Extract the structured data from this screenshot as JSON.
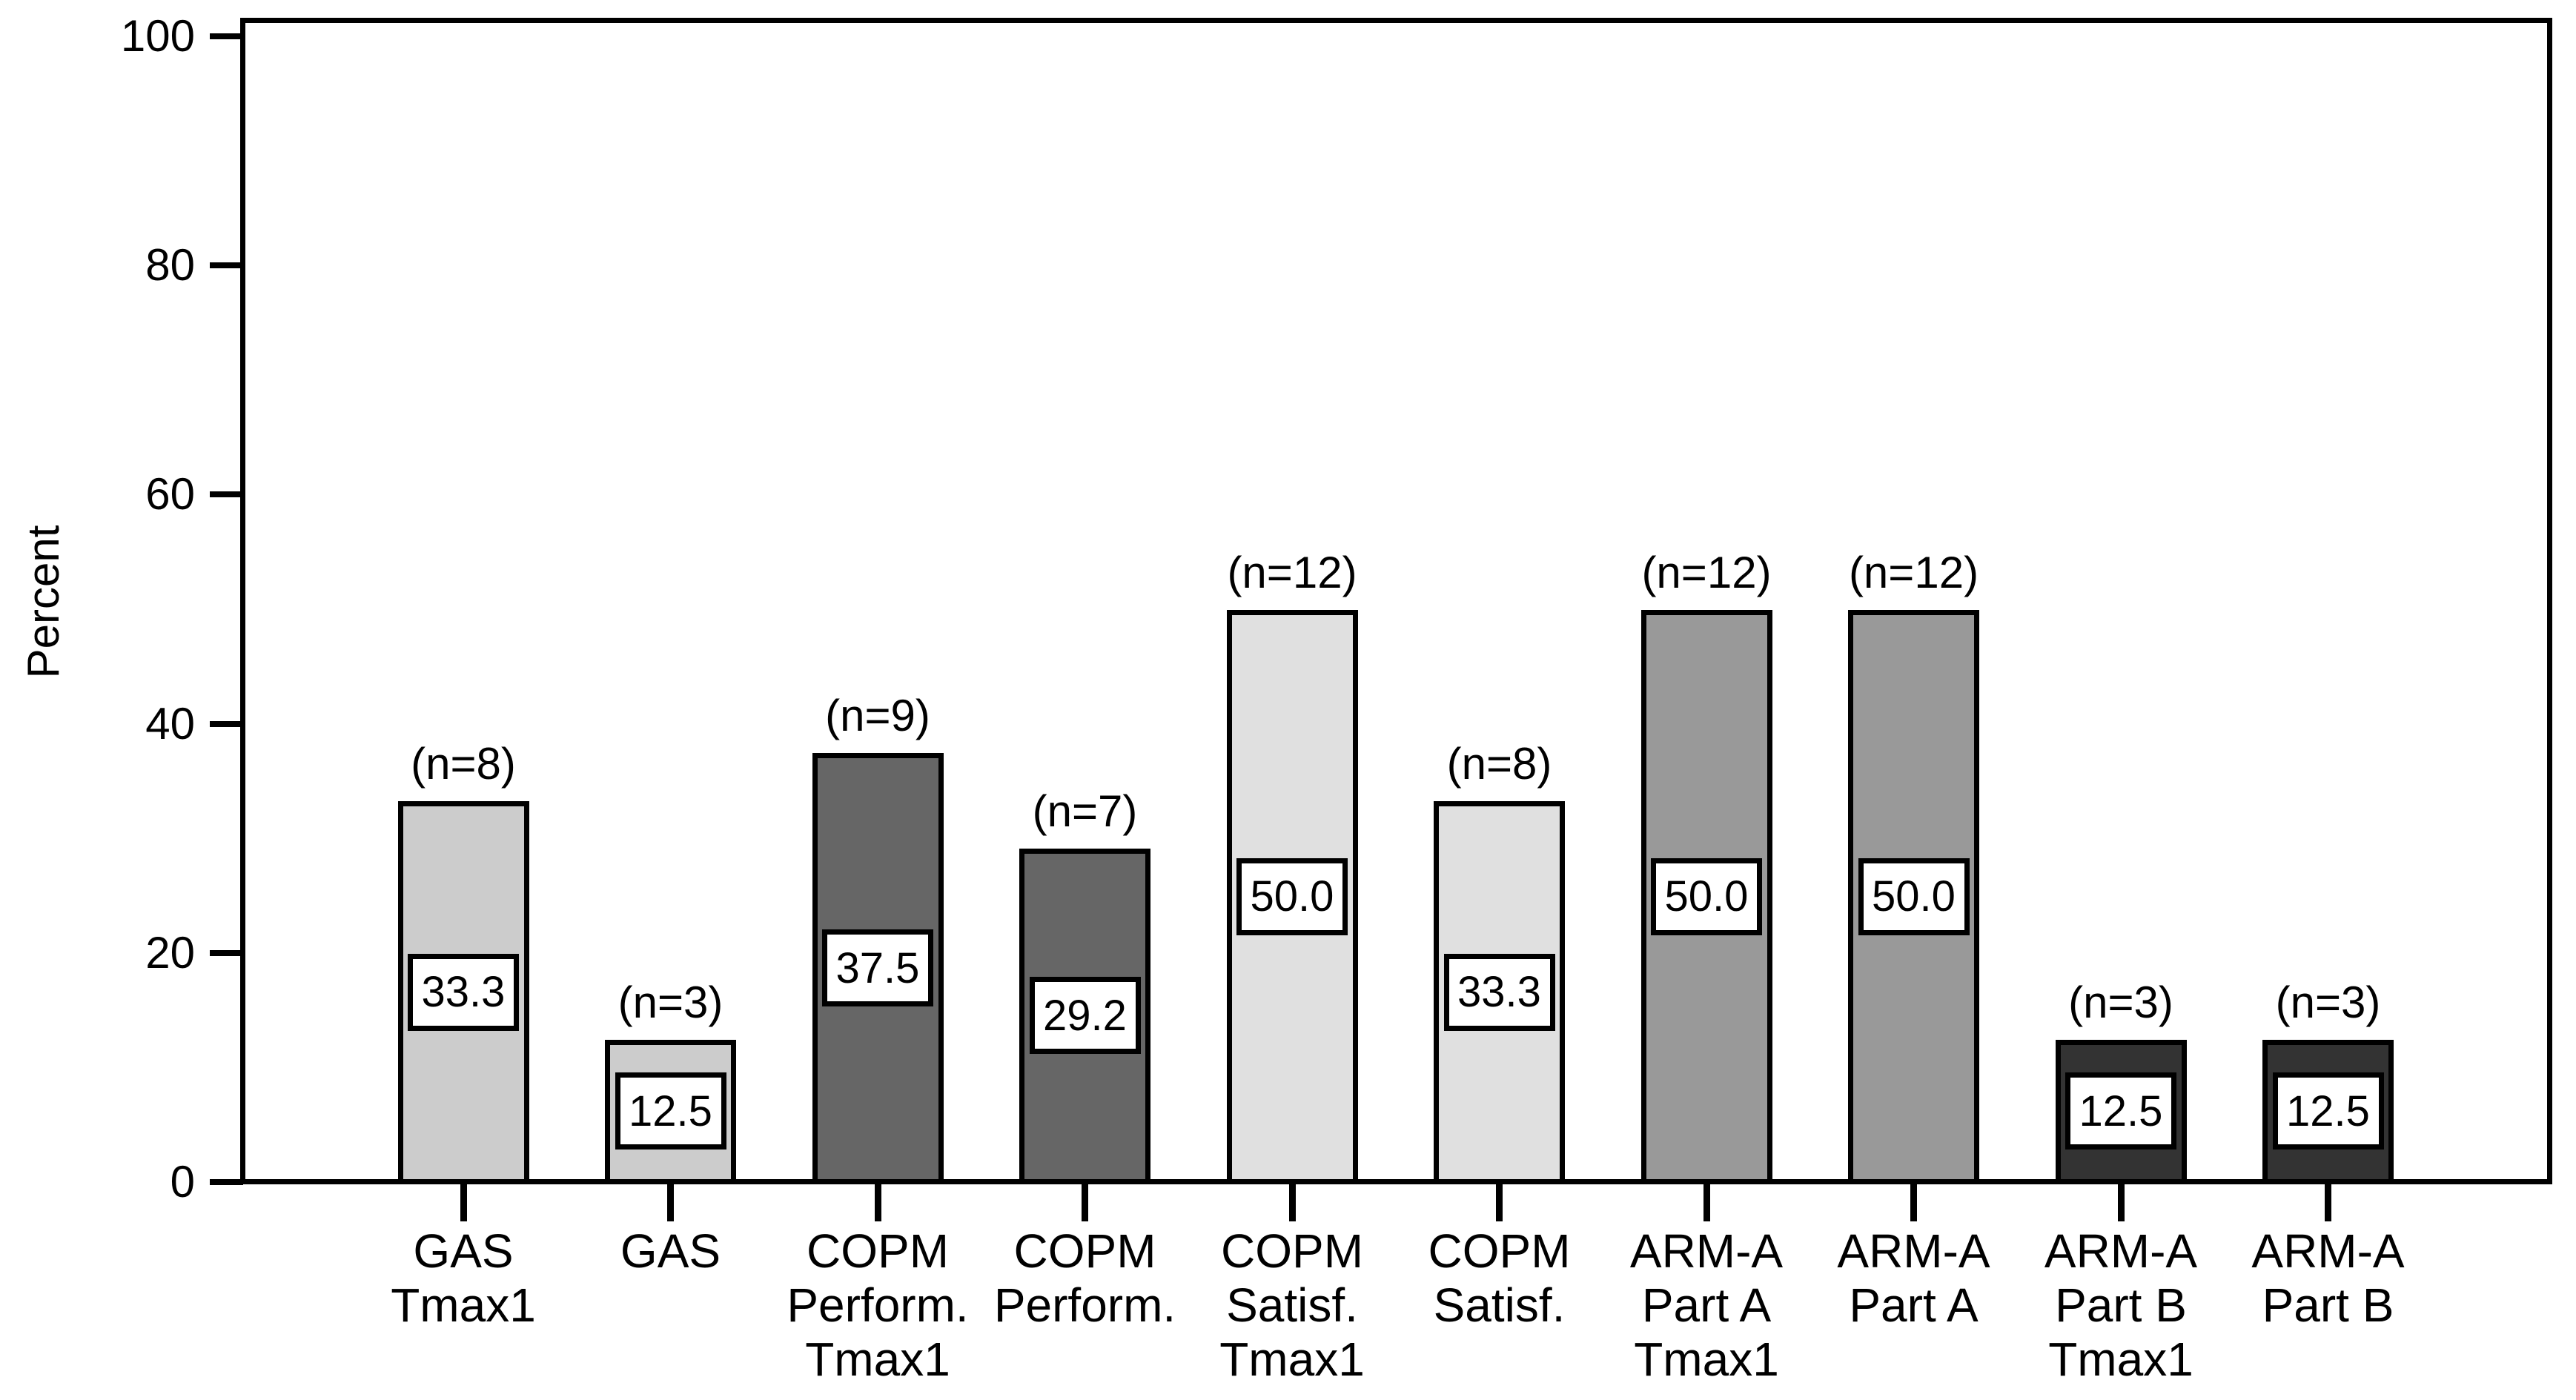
{
  "chart_data": {
    "type": "bar",
    "title": "",
    "xlabel": "",
    "ylabel": "Percent",
    "ylim": [
      0,
      100
    ],
    "yticks": [
      0,
      20,
      40,
      60,
      80,
      100
    ],
    "grid": false,
    "legend": "none",
    "frame": "full box around plot area",
    "categories": [
      "GAS Tmax1",
      "GAS",
      "COPM Perform. Tmax1",
      "COPM Perform.",
      "COPM Satisf. Tmax1",
      "COPM Satisf.",
      "ARM-A Part A Tmax1",
      "ARM-A Part A",
      "ARM-A Part B Tmax1",
      "ARM-A Part B"
    ],
    "category_lines": [
      [
        "GAS",
        "Tmax1"
      ],
      [
        "GAS"
      ],
      [
        "COPM",
        "Perform.",
        "Tmax1"
      ],
      [
        "COPM",
        "Perform."
      ],
      [
        "COPM",
        "Satisf.",
        "Tmax1"
      ],
      [
        "COPM",
        "Satisf."
      ],
      [
        "ARM-A",
        "Part A",
        "Tmax1"
      ],
      [
        "ARM-A",
        "Part A"
      ],
      [
        "ARM-A",
        "Part B",
        "Tmax1"
      ],
      [
        "ARM-A",
        "Part B"
      ]
    ],
    "values": [
      33.3,
      12.5,
      37.5,
      29.2,
      50.0,
      33.3,
      50.0,
      50.0,
      12.5,
      12.5
    ],
    "value_labels": [
      "33.3",
      "12.5",
      "37.5",
      "29.2",
      "50.0",
      "33.3",
      "50.0",
      "50.0",
      "12.5",
      "12.5"
    ],
    "n_labels": [
      "(n=8)",
      "(n=3)",
      "(n=9)",
      "(n=7)",
      "(n=12)",
      "(n=8)",
      "(n=12)",
      "(n=12)",
      "(n=3)",
      "(n=3)"
    ],
    "bar_colors": [
      "#cccccc",
      "#cccccc",
      "#666666",
      "#666666",
      "#e0e0e0",
      "#e0e0e0",
      "#999999",
      "#999999",
      "#333333",
      "#333333"
    ],
    "bar_border_color": "#000000",
    "value_label_style": "white box with black border centered inside bar",
    "n_label_style": "above bar top"
  }
}
